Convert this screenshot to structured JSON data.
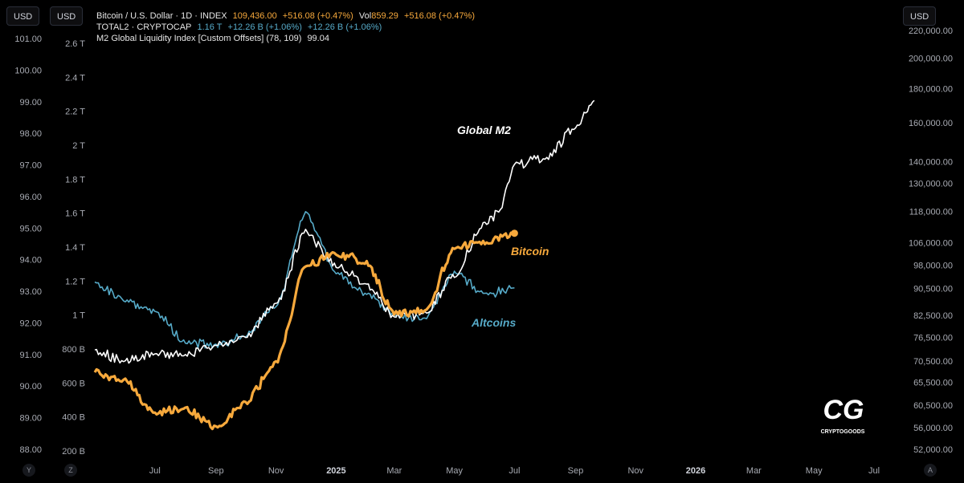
{
  "toolbar": {
    "left_unit_1": "USD",
    "left_unit_2": "USD",
    "right_unit": "USD",
    "bottom_left_1": "Y",
    "bottom_left_2": "Z",
    "bottom_right": "A"
  },
  "legend": {
    "btc": {
      "name": "Bitcoin / U.S. Dollar · 1D · INDEX",
      "value": "109,436.00",
      "change": "+516.08 (+0.47%)",
      "vol_label": "Vol",
      "vol": "859.29",
      "vol_change": "+516.08 (+0.47%)"
    },
    "total2": {
      "name": "TOTAL2 · CRYPTOCAP",
      "value": "1.16 T",
      "change": "+12.26 B (+1.06%)",
      "change2": "+12.26 B (+1.06%)"
    },
    "m2": {
      "name": "M2 Global Liquidity Index [Custom Offsets] (78, 109)",
      "value": "99.04"
    }
  },
  "watermark": {
    "logo": "CG",
    "text": "CRYPTOGOODS"
  },
  "colors": {
    "bitcoin": "#f7a93c",
    "altcoins": "#56aac8",
    "m2": "#ffffff",
    "background": "#000000",
    "axis_text": "#a8abb3"
  },
  "chart_data": {
    "type": "line",
    "x_ticks": [
      "Jul",
      "Sep",
      "Nov",
      "2025",
      "Mar",
      "May",
      "Jul",
      "Sep",
      "Nov",
      "2026",
      "Mar",
      "May",
      "Jul"
    ],
    "x_ticks_bold": [
      "2025",
      "2026"
    ],
    "axes": {
      "m2": {
        "position": "left-outer",
        "ticks": [
          "101.00",
          "100.00",
          "99.00",
          "98.00",
          "97.00",
          "96.00",
          "95.00",
          "94.00",
          "93.00",
          "92.00",
          "91.00",
          "90.00",
          "89.00",
          "88.00"
        ],
        "range": [
          87.8,
          101.55
        ]
      },
      "total2": {
        "position": "left-inner",
        "ticks": [
          "2.6 T",
          "2.4 T",
          "2.2 T",
          "2 T",
          "1.8 T",
          "1.6 T",
          "1.4 T",
          "1.2 T",
          "1 T",
          "800 B",
          "600 B",
          "400 B",
          "200 B"
        ],
        "range": [
          0.13,
          2.72
        ]
      },
      "btc": {
        "position": "right",
        "scale": "log",
        "ticks": [
          "220,000.00",
          "200,000.00",
          "180,000.00",
          "160,000.00",
          "140,000.00",
          "130,000.00",
          "118,000.00",
          "106,000.00",
          "98,000.00",
          "90,500.00",
          "82,500.00",
          "76,500.00",
          "70,500.00",
          "65,500.00",
          "60,500.00",
          "56,000.00",
          "52,000.00"
        ],
        "range": [
          50500,
          226000
        ]
      }
    },
    "series": [
      {
        "name": "Global M2",
        "axis": "m2",
        "x": [
          "2024-05",
          "2024-06",
          "2024-07",
          "2024-08",
          "2024-09",
          "2024-10",
          "2024-11",
          "2024-12",
          "2025-01",
          "2025-02",
          "2025-03",
          "2025-04",
          "2025-05",
          "2025-06",
          "2025-06-15",
          "2025-07",
          "2025-08",
          "2025-09",
          "2025-09-20"
        ],
        "values": [
          91.1,
          90.8,
          91.0,
          91.0,
          91.3,
          91.5,
          92.6,
          94.9,
          93.8,
          93.2,
          92.2,
          92.3,
          93.5,
          95.2,
          95.5,
          97.0,
          97.2,
          98.2,
          99.04
        ]
      },
      {
        "name": "Bitcoin",
        "axis": "btc",
        "x": [
          "2024-05",
          "2024-06",
          "2024-07",
          "2024-08",
          "2024-09",
          "2024-10",
          "2024-11",
          "2024-12",
          "2025-01",
          "2025-02",
          "2025-03",
          "2025-04",
          "2025-05",
          "2025-06",
          "2025-07"
        ],
        "values": [
          68000,
          66000,
          59000,
          60000,
          56000,
          61000,
          70000,
          98000,
          102000,
          99000,
          83000,
          84000,
          104000,
          106000,
          109436
        ]
      },
      {
        "name": "Altcoins",
        "axis": "total2",
        "x": [
          "2024-05",
          "2024-06",
          "2024-07",
          "2024-08",
          "2024-09",
          "2024-10",
          "2024-11",
          "2024-12",
          "2025-01",
          "2025-02",
          "2025-03",
          "2025-04",
          "2025-05",
          "2025-06",
          "2025-07"
        ],
        "values": [
          1.19,
          1.08,
          1.02,
          0.84,
          0.82,
          0.88,
          1.05,
          1.6,
          1.25,
          1.12,
          1.0,
          0.98,
          1.25,
          1.12,
          1.16
        ]
      }
    ],
    "annotations": [
      {
        "text": "Global M2",
        "color": "#ffffff"
      },
      {
        "text": "Bitcoin",
        "color": "#f7a93c"
      },
      {
        "text": "Altcoins",
        "color": "#56aac8"
      }
    ]
  }
}
